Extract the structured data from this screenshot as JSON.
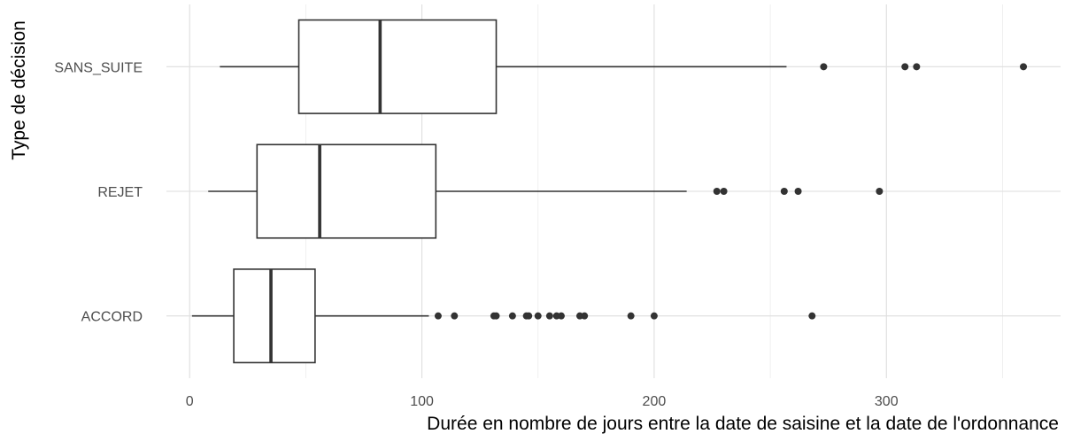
{
  "chart_data": {
    "type": "boxplot",
    "orientation": "horizontal",
    "xlabel": "Durée en nombre de jours entre la date de saisine et la date de l'ordonnance",
    "ylabel": "Type de décision",
    "xlim": [
      -10,
      375
    ],
    "xticks": [
      0,
      100,
      200,
      300
    ],
    "x_minor_gridlines": [
      50,
      150,
      250,
      350
    ],
    "grid": true,
    "categories": [
      "ACCORD",
      "REJET",
      "SANS_SUITE"
    ],
    "series": [
      {
        "category": "ACCORD",
        "whisker_low": 1,
        "q1": 19,
        "median": 35,
        "q3": 54,
        "whisker_high": 103,
        "outliers": [
          107,
          114,
          131,
          132,
          139,
          145,
          146,
          150,
          155,
          158,
          160,
          168,
          170,
          190,
          200,
          268
        ]
      },
      {
        "category": "REJET",
        "whisker_low": 8,
        "q1": 29,
        "median": 56,
        "q3": 106,
        "whisker_high": 214,
        "outliers": [
          227,
          230,
          256,
          262,
          297
        ]
      },
      {
        "category": "SANS_SUITE",
        "whisker_low": 13,
        "q1": 47,
        "median": 82,
        "q3": 132,
        "whisker_high": 257,
        "outliers": [
          273,
          308,
          313,
          359
        ]
      }
    ],
    "colors": {
      "box_stroke": "#333333",
      "box_fill": "#ffffff",
      "outlier": "#333333",
      "grid_major": "#dedede",
      "grid_minor": "#ececec",
      "tick_text": "#4d4d4d",
      "title_text": "#000000"
    }
  }
}
